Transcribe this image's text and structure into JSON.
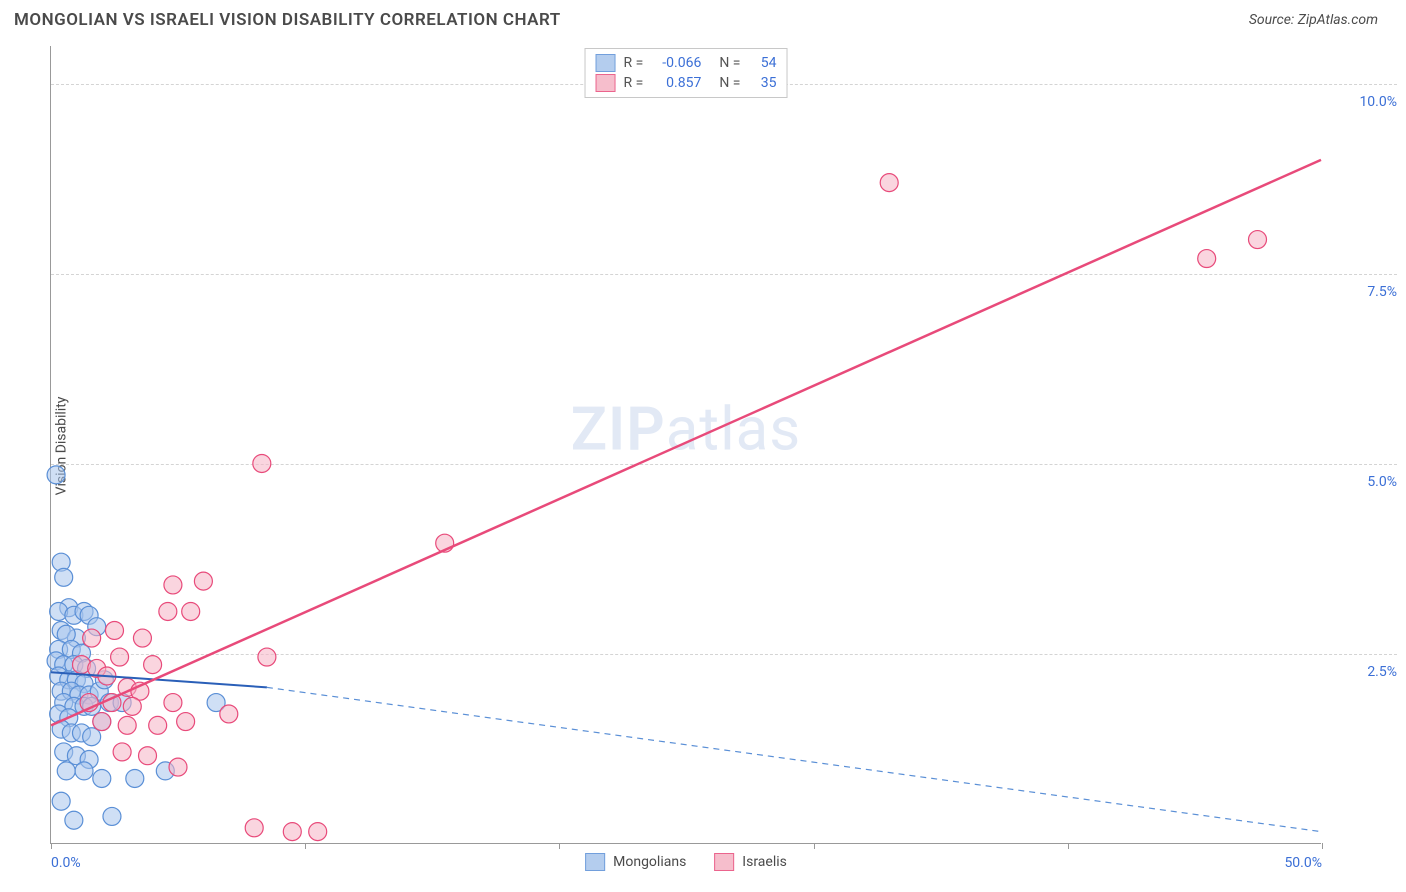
{
  "title": "MONGOLIAN VS ISRAELI VISION DISABILITY CORRELATION CHART",
  "source_label": "Source: ZipAtlas.com",
  "y_axis_label": "Vision Disability",
  "watermark_zip": "ZIP",
  "watermark_atlas": "atlas",
  "chart": {
    "type": "scatter",
    "background_color": "#ffffff",
    "grid_color": "#d4d4d4",
    "axis_color": "#999999",
    "tick_label_color": "#3b6fd6",
    "xlim": [
      0,
      50
    ],
    "ylim": [
      0,
      10.5
    ],
    "y_ticks": [
      {
        "v": 2.5,
        "label": "2.5%"
      },
      {
        "v": 5.0,
        "label": "5.0%"
      },
      {
        "v": 7.5,
        "label": "7.5%"
      },
      {
        "v": 10.0,
        "label": "10.0%"
      }
    ],
    "x_tick_positions": [
      0,
      10,
      20,
      30,
      40,
      50
    ],
    "x_tick_labels": {
      "0": "0.0%",
      "50": "50.0%"
    },
    "series": [
      {
        "name": "Mongolians",
        "fill": "#a7c5ec",
        "stroke": "#5a8fd6",
        "fill_opacity": 0.55,
        "marker_radius": 9,
        "R": "-0.066",
        "N": "54",
        "trend_solid": {
          "x1": 0,
          "y1": 2.25,
          "x2": 8.5,
          "y2": 2.05,
          "color": "#2a5fb8",
          "width": 2
        },
        "trend_dashed": {
          "x1": 8.5,
          "y1": 2.05,
          "x2": 50,
          "y2": 0.15,
          "color": "#5a8fd6",
          "width": 1.2,
          "dash": "6,5"
        },
        "points": [
          [
            0.2,
            4.85
          ],
          [
            0.4,
            3.7
          ],
          [
            0.5,
            3.5
          ],
          [
            0.7,
            3.1
          ],
          [
            0.3,
            3.05
          ],
          [
            0.9,
            3.0
          ],
          [
            1.3,
            3.05
          ],
          [
            1.5,
            3.0
          ],
          [
            0.4,
            2.8
          ],
          [
            1.0,
            2.7
          ],
          [
            0.6,
            2.75
          ],
          [
            1.8,
            2.85
          ],
          [
            0.3,
            2.55
          ],
          [
            0.8,
            2.55
          ],
          [
            1.2,
            2.5
          ],
          [
            0.2,
            2.4
          ],
          [
            0.5,
            2.35
          ],
          [
            0.9,
            2.35
          ],
          [
            1.4,
            2.3
          ],
          [
            0.3,
            2.2
          ],
          [
            0.7,
            2.15
          ],
          [
            1.0,
            2.15
          ],
          [
            1.3,
            2.1
          ],
          [
            0.4,
            2.0
          ],
          [
            0.8,
            2.0
          ],
          [
            1.1,
            1.95
          ],
          [
            1.5,
            1.95
          ],
          [
            1.9,
            2.0
          ],
          [
            2.1,
            2.15
          ],
          [
            0.5,
            1.85
          ],
          [
            0.9,
            1.8
          ],
          [
            1.3,
            1.8
          ],
          [
            0.3,
            1.7
          ],
          [
            0.7,
            1.65
          ],
          [
            1.6,
            1.8
          ],
          [
            2.3,
            1.85
          ],
          [
            2.8,
            1.85
          ],
          [
            0.4,
            1.5
          ],
          [
            0.8,
            1.45
          ],
          [
            1.2,
            1.45
          ],
          [
            1.6,
            1.4
          ],
          [
            2.0,
            1.6
          ],
          [
            0.5,
            1.2
          ],
          [
            1.0,
            1.15
          ],
          [
            1.5,
            1.1
          ],
          [
            0.6,
            0.95
          ],
          [
            1.3,
            0.95
          ],
          [
            2.0,
            0.85
          ],
          [
            3.3,
            0.85
          ],
          [
            4.5,
            0.95
          ],
          [
            0.4,
            0.55
          ],
          [
            0.9,
            0.3
          ],
          [
            2.4,
            0.35
          ],
          [
            6.5,
            1.85
          ]
        ]
      },
      {
        "name": "Israelis",
        "fill": "#f5b3c4",
        "stroke": "#e84a7a",
        "fill_opacity": 0.55,
        "marker_radius": 9,
        "R": "0.857",
        "N": "35",
        "trend_solid": {
          "x1": 0,
          "y1": 1.55,
          "x2": 50,
          "y2": 9.0,
          "color": "#e84a7a",
          "width": 2.5
        },
        "points": [
          [
            1.2,
            2.35
          ],
          [
            1.8,
            2.3
          ],
          [
            2.2,
            2.2
          ],
          [
            2.7,
            2.45
          ],
          [
            3.0,
            2.05
          ],
          [
            3.5,
            2.0
          ],
          [
            4.0,
            2.35
          ],
          [
            1.5,
            1.85
          ],
          [
            2.4,
            1.85
          ],
          [
            3.2,
            1.8
          ],
          [
            4.8,
            1.85
          ],
          [
            2.0,
            1.6
          ],
          [
            3.0,
            1.55
          ],
          [
            4.2,
            1.55
          ],
          [
            5.3,
            1.6
          ],
          [
            2.8,
            1.2
          ],
          [
            3.8,
            1.15
          ],
          [
            5.0,
            1.0
          ],
          [
            1.6,
            2.7
          ],
          [
            2.5,
            2.8
          ],
          [
            3.6,
            2.7
          ],
          [
            4.6,
            3.05
          ],
          [
            5.5,
            3.05
          ],
          [
            6.0,
            3.45
          ],
          [
            8.5,
            2.45
          ],
          [
            4.8,
            3.4
          ],
          [
            7.0,
            1.7
          ],
          [
            8.3,
            5.0
          ],
          [
            15.5,
            3.95
          ],
          [
            33.0,
            8.7
          ],
          [
            45.5,
            7.7
          ],
          [
            47.5,
            7.95
          ],
          [
            8.0,
            0.2
          ],
          [
            9.5,
            0.15
          ],
          [
            10.5,
            0.15
          ]
        ]
      }
    ]
  },
  "legend_bottom": [
    {
      "label": "Mongolians",
      "fill": "#a7c5ec",
      "stroke": "#5a8fd6"
    },
    {
      "label": "Israelis",
      "fill": "#f5b3c4",
      "stroke": "#e84a7a"
    }
  ]
}
